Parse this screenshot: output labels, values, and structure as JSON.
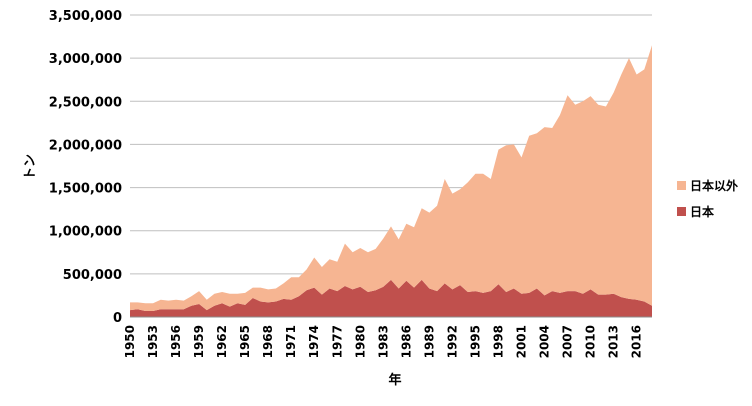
{
  "chart_data": {
    "type": "area",
    "stacked": true,
    "xlabel": "年",
    "ylabel": "トン",
    "ylim": [
      0,
      3500000
    ],
    "yticks": [
      0,
      500000,
      1000000,
      1500000,
      2000000,
      2500000,
      3000000,
      3500000
    ],
    "ytick_labels": [
      "0",
      "500,000",
      "1,000,000",
      "1,500,000",
      "2,000,000",
      "2,500,000",
      "3,000,000",
      "3,500,000"
    ],
    "xtick_labels": [
      "1950",
      "1953",
      "1956",
      "1959",
      "1962",
      "1965",
      "1968",
      "1971",
      "1974",
      "1977",
      "1980",
      "1983",
      "1986",
      "1989",
      "1992",
      "1995",
      "1998",
      "2001",
      "2004",
      "2007",
      "2010",
      "2013",
      "2016"
    ],
    "grid": true,
    "legend_position": "right",
    "x": [
      1950,
      1951,
      1952,
      1953,
      1954,
      1955,
      1956,
      1957,
      1958,
      1959,
      1960,
      1961,
      1962,
      1963,
      1964,
      1965,
      1966,
      1967,
      1968,
      1969,
      1970,
      1971,
      1972,
      1973,
      1974,
      1975,
      1976,
      1977,
      1978,
      1979,
      1980,
      1981,
      1982,
      1983,
      1984,
      1985,
      1986,
      1987,
      1988,
      1989,
      1990,
      1991,
      1992,
      1993,
      1994,
      1995,
      1996,
      1997,
      1998,
      1999,
      2000,
      2001,
      2002,
      2003,
      2004,
      2005,
      2006,
      2007,
      2008,
      2009,
      2010,
      2011,
      2012,
      2013,
      2014,
      2015,
      2016,
      2017,
      2018
    ],
    "series": [
      {
        "name": "日本",
        "color": "#c0504d",
        "values": [
          80000,
          90000,
          70000,
          70000,
          90000,
          90000,
          90000,
          90000,
          130000,
          150000,
          80000,
          130000,
          160000,
          120000,
          160000,
          140000,
          220000,
          180000,
          170000,
          180000,
          210000,
          200000,
          240000,
          310000,
          340000,
          260000,
          330000,
          300000,
          360000,
          320000,
          350000,
          290000,
          310000,
          350000,
          430000,
          330000,
          420000,
          340000,
          430000,
          330000,
          300000,
          390000,
          320000,
          370000,
          290000,
          300000,
          280000,
          300000,
          380000,
          290000,
          330000,
          270000,
          280000,
          330000,
          250000,
          300000,
          280000,
          300000,
          300000,
          270000,
          320000,
          260000,
          260000,
          270000,
          230000,
          210000,
          200000,
          180000,
          130000
        ]
      },
      {
        "name": "日本以外",
        "color": "#f6b592",
        "values": [
          90000,
          80000,
          90000,
          90000,
          110000,
          100000,
          110000,
          100000,
          110000,
          150000,
          120000,
          140000,
          130000,
          150000,
          110000,
          140000,
          120000,
          160000,
          150000,
          150000,
          180000,
          260000,
          220000,
          240000,
          350000,
          320000,
          340000,
          340000,
          490000,
          430000,
          450000,
          460000,
          480000,
          560000,
          620000,
          570000,
          660000,
          700000,
          830000,
          880000,
          990000,
          1210000,
          1110000,
          1110000,
          1270000,
          1360000,
          1380000,
          1300000,
          1560000,
          1700000,
          1670000,
          1580000,
          1820000,
          1800000,
          1950000,
          1890000,
          2060000,
          2270000,
          2160000,
          2230000,
          2240000,
          2200000,
          2180000,
          2330000,
          2580000,
          2790000,
          2610000,
          2690000,
          3020000
        ]
      }
    ]
  }
}
